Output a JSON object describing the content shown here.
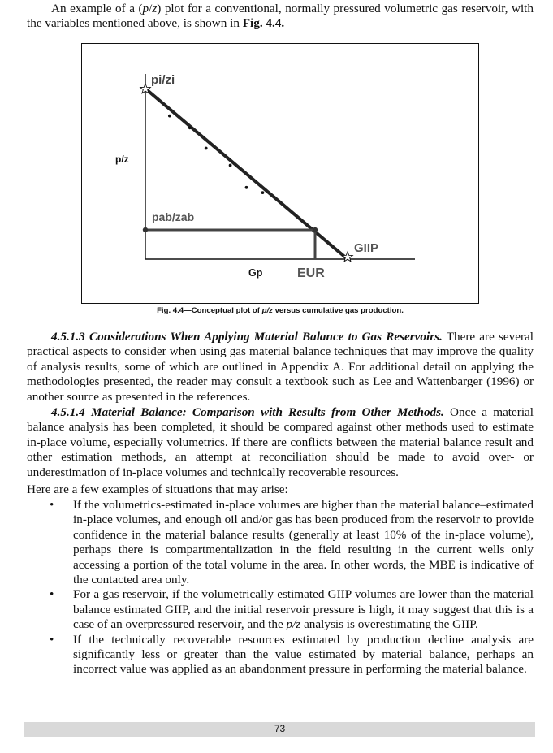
{
  "intro": {
    "part1": "An example of a (",
    "pz1": "p",
    "slash1": "/",
    "z1": "z",
    "part2": ") plot for a conventional, normally pressured volumetric gas reservoir, with the variables mentioned above, is shown in ",
    "fig_ref": "Fig. 4.4."
  },
  "figure": {
    "caption_prefix": "Fig. 4.4—Conceptual plot of ",
    "caption_italic": "p/z",
    "caption_suffix": " versus cumulative gas production.",
    "labels": {
      "pi_zi": "pi/zi",
      "y_axis": "p/z",
      "pab_zab": "pab/zab",
      "giip": "GIIP",
      "x_axis": "Gp",
      "eur": "EUR"
    }
  },
  "chart_data": {
    "type": "scatter",
    "title": "",
    "xlabel": "Gp",
    "ylabel": "p/z",
    "annotations": [
      "pi/zi",
      "pab/zab",
      "GIIP",
      "EUR"
    ],
    "points_relative": {
      "note": "conceptual plot, no numeric axes",
      "x": [
        0.0,
        0.12,
        0.22,
        0.3,
        0.42,
        0.5,
        0.58
      ],
      "y": [
        1.0,
        0.84,
        0.77,
        0.65,
        0.55,
        0.42,
        0.39
      ]
    },
    "trend_line": {
      "x": [
        0.0,
        1.0
      ],
      "y": [
        1.0,
        0.0
      ]
    },
    "abandonment": {
      "x": 0.82,
      "y": 0.18
    },
    "grid": false
  },
  "section_4513": {
    "number": "4.5.1.3",
    "title": "Considerations When Applying Material Balance to Gas Reservoirs.",
    "body": " There are several practical aspects to consider when using gas material balance techniques that may improve the quality of analysis results, some of which are outlined in Appendix A. For additional detail on applying the methodologies presented, the reader may consult a textbook such as Lee and Wattenbarger (1996) or another source as presented in the references."
  },
  "section_4514": {
    "number": "4.5.1.4",
    "title": "Material Balance: Comparison with Results from Other Methods.",
    "body": " Once a material balance analysis has been completed, it should be compared against other methods used to estimate in-place volume, especially volumetrics. If there are conflicts between the material balance result and other estimation methods, an attempt at reconciliation should be made to avoid over- or underestimation of in-place volumes and technically recoverable resources."
  },
  "examples_intro": "Here are a few examples of situations that may arise:",
  "bullets": [
    {
      "text": "If the volumetrics-estimated in-place volumes are higher than the material balance–estimated in-place volumes, and enough oil and/or gas has been produced from the reservoir to provide confidence in the material balance results (generally at least 10% of the in-place volume), perhaps there is compartmentalization in the field resulting in the current wells only accessing a portion of the total volume in the area. In other words, the MBE is indicative of the contacted area only."
    },
    {
      "text_a": "For a gas reservoir, if the volumetrically estimated GIIP volumes are lower than the material balance estimated GIIP, and the initial reservoir pressure is high, it may suggest that this is a case of an overpressured reservoir, and the ",
      "text_italic": "p/z",
      "text_b": " analysis is overestimating the GIIP."
    },
    {
      "text": "If the technically recoverable resources estimated by production decline analysis are significantly less or greater than the value estimated by material balance, perhaps an incorrect value was applied as an abandonment pressure in performing the material balance."
    }
  ],
  "bullet_glyph": "•",
  "footer": {
    "page_number": "73"
  }
}
